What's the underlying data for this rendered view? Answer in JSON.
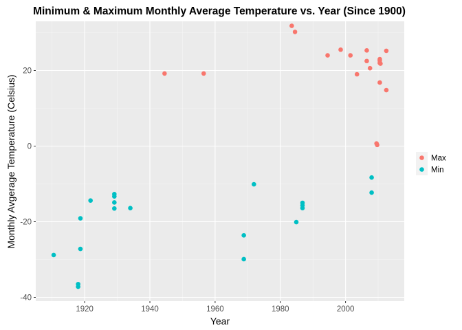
{
  "chart_data": {
    "type": "scatter",
    "title": "Minimum & Maximum Monthly Average Temperature vs. Year (Since 1900)",
    "xlabel": "Year",
    "ylabel": "Monthly Avgerage Temperature (Celsius)",
    "xlim": [
      1905,
      2018
    ],
    "ylim": [
      -41,
      33
    ],
    "x_ticks": [
      1920,
      1940,
      1960,
      1980,
      2000
    ],
    "y_ticks": [
      -40,
      -20,
      0,
      20
    ],
    "grid": true,
    "legend_position": "right",
    "series": [
      {
        "name": "Max",
        "color": "#F8766D",
        "points": [
          [
            1944.5,
            19.2
          ],
          [
            1956.5,
            19.2
          ],
          [
            1983.5,
            31.8
          ],
          [
            1984.5,
            30.2
          ],
          [
            1994.5,
            24.0
          ],
          [
            1998.5,
            25.5
          ],
          [
            2001.5,
            24.0
          ],
          [
            2003.5,
            19.0
          ],
          [
            2006.5,
            25.3
          ],
          [
            2006.5,
            22.5
          ],
          [
            2007.5,
            20.6
          ],
          [
            2009.5,
            0.7
          ],
          [
            2009.7,
            0.3
          ],
          [
            2010.5,
            23.0
          ],
          [
            2010.5,
            22.6
          ],
          [
            2010.5,
            22.0
          ],
          [
            2010.7,
            21.8
          ],
          [
            2010.5,
            16.8
          ],
          [
            2012.5,
            25.2
          ],
          [
            2012.5,
            14.8
          ]
        ]
      },
      {
        "name": "Min",
        "color": "#00BFC4",
        "points": [
          [
            1910.5,
            -28.8
          ],
          [
            1918.0,
            -36.5
          ],
          [
            1918.0,
            -37.2
          ],
          [
            1918.7,
            -19.1
          ],
          [
            1918.7,
            -27.2
          ],
          [
            1921.8,
            -14.4
          ],
          [
            1929.1,
            -12.7
          ],
          [
            1929.1,
            -13.3
          ],
          [
            1929.1,
            -14.9
          ],
          [
            1929.1,
            -16.5
          ],
          [
            1934.0,
            -16.4
          ],
          [
            1968.8,
            -23.6
          ],
          [
            1968.8,
            -29.9
          ],
          [
            1971.9,
            -10.1
          ],
          [
            1984.9,
            -20.1
          ],
          [
            1986.8,
            -15.0
          ],
          [
            1986.8,
            -15.7
          ],
          [
            1986.8,
            -16.4
          ],
          [
            2008.0,
            -8.3
          ],
          [
            2008.0,
            -12.3
          ]
        ]
      }
    ]
  }
}
